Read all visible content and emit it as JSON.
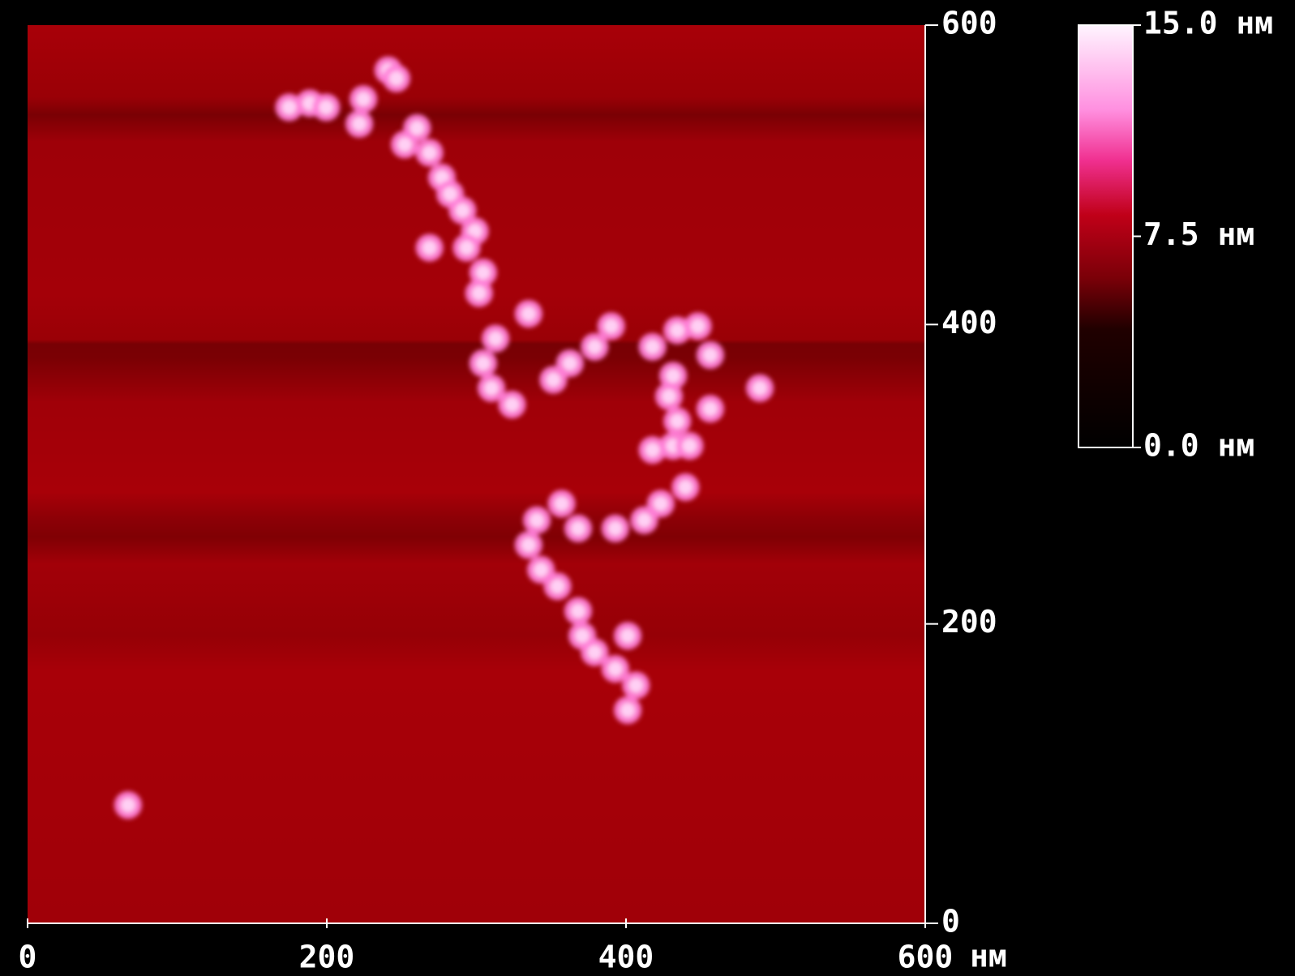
{
  "chart_data": {
    "type": "image",
    "x_unit": "нм",
    "xlim": [
      0,
      600
    ],
    "ylim": [
      0,
      600
    ],
    "xticks": [
      0,
      200,
      400,
      600
    ],
    "yticks": [
      0,
      200,
      400,
      600
    ],
    "colorbar": {
      "lim": [
        0,
        15
      ],
      "ticks": [
        {
          "value": 15,
          "label": "15.0 нм"
        },
        {
          "value": 7.5,
          "label": "7.5 нм"
        },
        {
          "value": 0,
          "label": "0.0 нм"
        }
      ]
    }
  }
}
